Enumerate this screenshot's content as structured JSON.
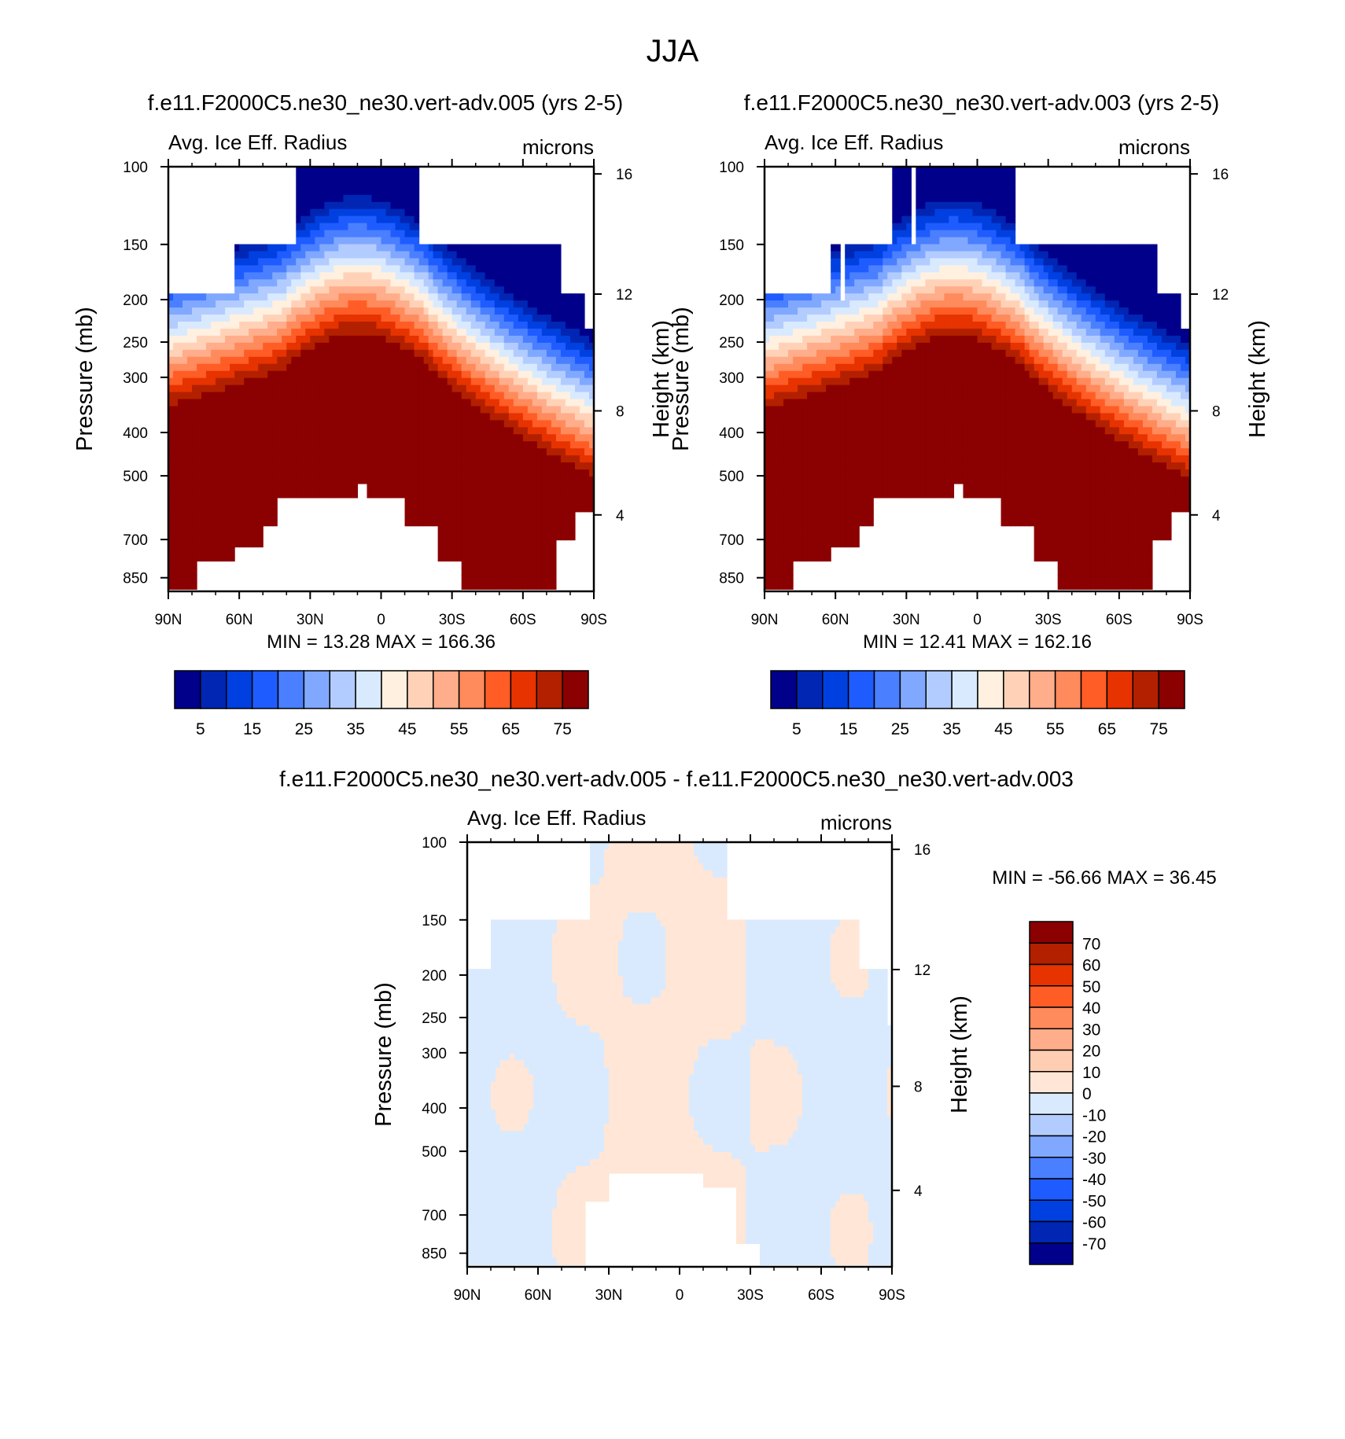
{
  "figure_title": "JJA",
  "colors": {
    "abs_scale": [
      "#00008b",
      "#0026b3",
      "#0040e0",
      "#1f5cff",
      "#4a7fff",
      "#80a8ff",
      "#b3ccff",
      "#d9eaff",
      "#fff0e0",
      "#ffd2b8",
      "#ffad8a",
      "#ff8a5c",
      "#ff5c26",
      "#e63300",
      "#b22000",
      "#8b0000"
    ],
    "diff_scale": [
      "#00008b",
      "#0026b3",
      "#0040e0",
      "#1f5cff",
      "#4a7fff",
      "#80a8ff",
      "#b3ccff",
      "#d9eaff",
      "#ffe6d6",
      "#ffcdb2",
      "#ffad8a",
      "#ff8a5c",
      "#ff5c26",
      "#e63300",
      "#b22000",
      "#8b0000"
    ],
    "missing": "#ffffff"
  },
  "chart_data": [
    {
      "type": "heatmap",
      "title": "f.e11.F2000C5.ne30_ne30.vert-adv.005 (yrs 2-5)",
      "left_label": "Avg. Ice Eff. Radius",
      "right_label": "microns",
      "ylabel": "Pressure (mb)",
      "ylabel_right": "Height (km)",
      "x_ticks": [
        "90N",
        "60N",
        "30N",
        "0",
        "30S",
        "60S",
        "90S"
      ],
      "y_ticks": [
        "100",
        "150",
        "200",
        "250",
        "300",
        "400",
        "500",
        "700",
        "850"
      ],
      "y_right_ticks": [
        "16",
        "12",
        "8",
        "4"
      ],
      "stats": "MIN =  13.28  MAX = 166.36",
      "min": 13.28,
      "max": 166.36,
      "colorbar_labels": [
        "5",
        "15",
        "25",
        "35",
        "45",
        "55",
        "65",
        "75"
      ],
      "xlim": [
        90,
        -90
      ],
      "ylim": [
        100,
        1000
      ]
    },
    {
      "type": "heatmap",
      "title": "f.e11.F2000C5.ne30_ne30.vert-adv.003 (yrs 2-5)",
      "left_label": "Avg. Ice Eff. Radius",
      "right_label": "microns",
      "ylabel": "Pressure (mb)",
      "ylabel_right": "Height (km)",
      "x_ticks": [
        "90N",
        "60N",
        "30N",
        "0",
        "30S",
        "60S",
        "90S"
      ],
      "y_ticks": [
        "100",
        "150",
        "200",
        "250",
        "300",
        "400",
        "500",
        "700",
        "850"
      ],
      "y_right_ticks": [
        "16",
        "12",
        "8",
        "4"
      ],
      "stats": "MIN =  12.41  MAX = 162.16",
      "min": 12.41,
      "max": 162.16,
      "colorbar_labels": [
        "5",
        "15",
        "25",
        "35",
        "45",
        "55",
        "65",
        "75"
      ],
      "xlim": [
        90,
        -90
      ],
      "ylim": [
        100,
        1000
      ]
    },
    {
      "type": "heatmap",
      "title": "f.e11.F2000C5.ne30_ne30.vert-adv.005 - f.e11.F2000C5.ne30_ne30.vert-adv.003",
      "left_label": "Avg. Ice Eff. Radius",
      "right_label": "microns",
      "ylabel": "Pressure (mb)",
      "ylabel_right": "Height (km)",
      "x_ticks": [
        "90N",
        "60N",
        "30N",
        "0",
        "30S",
        "60S",
        "90S"
      ],
      "y_ticks": [
        "100",
        "150",
        "200",
        "250",
        "300",
        "400",
        "500",
        "700",
        "850"
      ],
      "y_right_ticks": [
        "16",
        "12",
        "8",
        "4"
      ],
      "stats": "MIN = -56.66  MAX =  36.45",
      "min": -56.66,
      "max": 36.45,
      "colorbar_labels": [
        "70",
        "60",
        "50",
        "40",
        "30",
        "20",
        "10",
        "0",
        "-10",
        "-20",
        "-30",
        "-40",
        "-50",
        "-60",
        "-70"
      ],
      "xlim": [
        90,
        -90
      ],
      "ylim": [
        100,
        1000
      ]
    }
  ]
}
